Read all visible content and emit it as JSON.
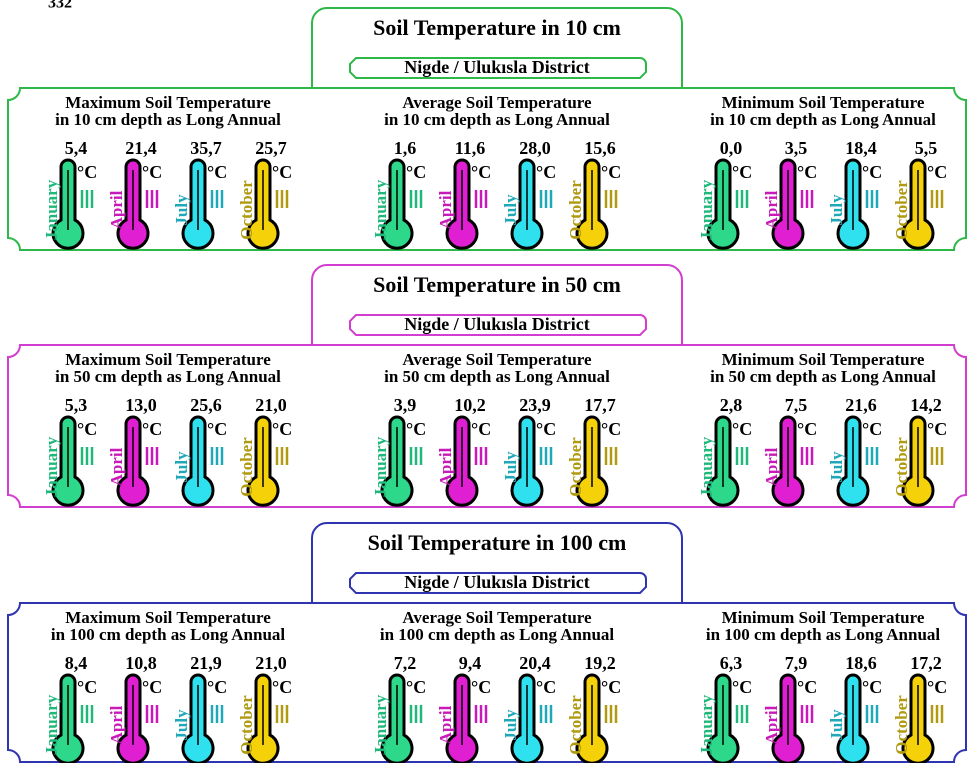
{
  "page_number": "332",
  "district": "Nigde / Ulukısla District",
  "unit": "°C",
  "months": [
    "January",
    "April",
    "July",
    "October"
  ],
  "sections": [
    {
      "title": "Soil Temperature in 10 cm",
      "color": "#2fb84a",
      "panels": [
        {
          "title_line1": "Maximum Soil Temperature",
          "title_line2": "in 10 cm depth as Long Annual",
          "values": [
            "5,4",
            "21,4",
            "35,7",
            "25,7"
          ]
        },
        {
          "title_line1": "Average Soil Temperature",
          "title_line2": "in 10 cm depth as Long Annual",
          "values": [
            "1,6",
            "11,6",
            "28,0",
            "15,6"
          ]
        },
        {
          "title_line1": "Minimum Soil Temperature",
          "title_line2": "in 10 cm depth as Long Annual",
          "values": [
            "0,0",
            "3,5",
            "18,4",
            "5,5"
          ]
        }
      ]
    },
    {
      "title": "Soil Temperature in 50 cm",
      "color": "#d23fd0",
      "panels": [
        {
          "title_line1": "Maximum Soil Temperature",
          "title_line2": "in 50 cm depth as Long Annual",
          "values": [
            "5,3",
            "13,0",
            "25,6",
            "21,0"
          ]
        },
        {
          "title_line1": "Average Soil Temperature",
          "title_line2": "in 50 cm depth as Long Annual",
          "values": [
            "3,9",
            "10,2",
            "23,9",
            "17,7"
          ]
        },
        {
          "title_line1": "Minimum Soil Temperature",
          "title_line2": "in 50 cm depth as Long Annual",
          "values": [
            "2,8",
            "7,5",
            "21,6",
            "14,2"
          ]
        }
      ]
    },
    {
      "title": "Soil Temperature in 100 cm",
      "color": "#2f34b0",
      "panels": [
        {
          "title_line1": "Maximum Soil Temperature",
          "title_line2": "in 100 cm depth as Long Annual",
          "values": [
            "8,4",
            "10,8",
            "21,9",
            "21,0"
          ]
        },
        {
          "title_line1": "Average Soil Temperature",
          "title_line2": "in 100 cm depth as Long Annual",
          "values": [
            "7,2",
            "9,4",
            "20,4",
            "19,2"
          ]
        },
        {
          "title_line1": "Minimum Soil Temperature",
          "title_line2": "in 100 cm depth as Long Annual",
          "values": [
            "6,3",
            "7,9",
            "18,6",
            "17,2"
          ]
        }
      ]
    }
  ]
}
